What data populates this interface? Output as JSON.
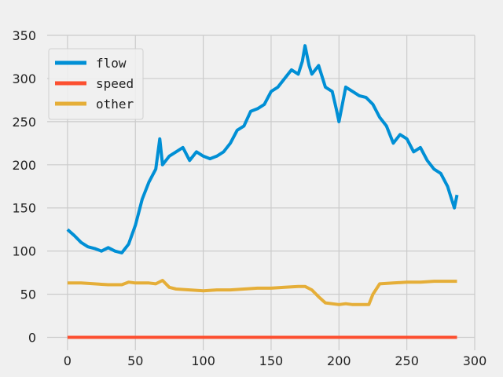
{
  "chart_data": {
    "type": "line",
    "title": "",
    "xlabel": "",
    "ylabel": "",
    "xlim": [
      -15,
      300
    ],
    "ylim": [
      -15,
      350
    ],
    "grid": true,
    "legend_placement": "top-left",
    "x_ticks": [
      0,
      50,
      100,
      150,
      200,
      250,
      300
    ],
    "y_ticks": [
      0,
      50,
      100,
      150,
      200,
      250,
      300,
      350
    ],
    "x_tick_labels": [
      "0",
      "50",
      "100",
      "150",
      "200",
      "250",
      "300"
    ],
    "y_tick_labels": [
      "0",
      "50",
      "100",
      "150",
      "200",
      "250",
      "300",
      "350"
    ],
    "series": [
      {
        "name": "flow",
        "color": "#008fd5",
        "x": [
          0,
          5,
          10,
          15,
          20,
          25,
          30,
          35,
          40,
          45,
          50,
          55,
          60,
          65,
          68,
          70,
          75,
          80,
          85,
          90,
          95,
          100,
          105,
          110,
          115,
          120,
          125,
          130,
          135,
          140,
          145,
          150,
          155,
          160,
          165,
          170,
          173,
          175,
          178,
          180,
          185,
          190,
          195,
          198,
          200,
          205,
          210,
          215,
          220,
          225,
          230,
          235,
          240,
          245,
          250,
          255,
          260,
          265,
          270,
          275,
          280,
          283,
          285,
          287
        ],
        "values": [
          125,
          118,
          110,
          105,
          103,
          100,
          104,
          100,
          98,
          108,
          130,
          160,
          180,
          195,
          230,
          200,
          210,
          215,
          220,
          205,
          215,
          210,
          207,
          210,
          215,
          225,
          240,
          245,
          262,
          265,
          270,
          285,
          290,
          300,
          310,
          305,
          320,
          338,
          315,
          305,
          315,
          290,
          285,
          265,
          250,
          290,
          285,
          280,
          278,
          270,
          255,
          245,
          225,
          235,
          230,
          215,
          220,
          205,
          195,
          190,
          175,
          160,
          150,
          165
        ]
      },
      {
        "name": "speed",
        "color": "#fc4f30",
        "x": [
          0,
          287
        ],
        "values": [
          0,
          0
        ]
      },
      {
        "name": "other",
        "color": "#e5ae38",
        "x": [
          0,
          10,
          20,
          30,
          40,
          45,
          50,
          60,
          65,
          70,
          75,
          80,
          90,
          100,
          110,
          120,
          130,
          140,
          150,
          160,
          170,
          175,
          180,
          185,
          190,
          200,
          205,
          210,
          220,
          222,
          225,
          230,
          240,
          250,
          260,
          270,
          280,
          287
        ],
        "values": [
          63,
          63,
          62,
          61,
          61,
          64,
          63,
          63,
          62,
          66,
          58,
          56,
          55,
          54,
          55,
          55,
          56,
          57,
          57,
          58,
          59,
          59,
          55,
          47,
          40,
          38,
          39,
          38,
          38,
          38,
          50,
          62,
          63,
          64,
          64,
          65,
          65,
          65
        ]
      }
    ]
  }
}
